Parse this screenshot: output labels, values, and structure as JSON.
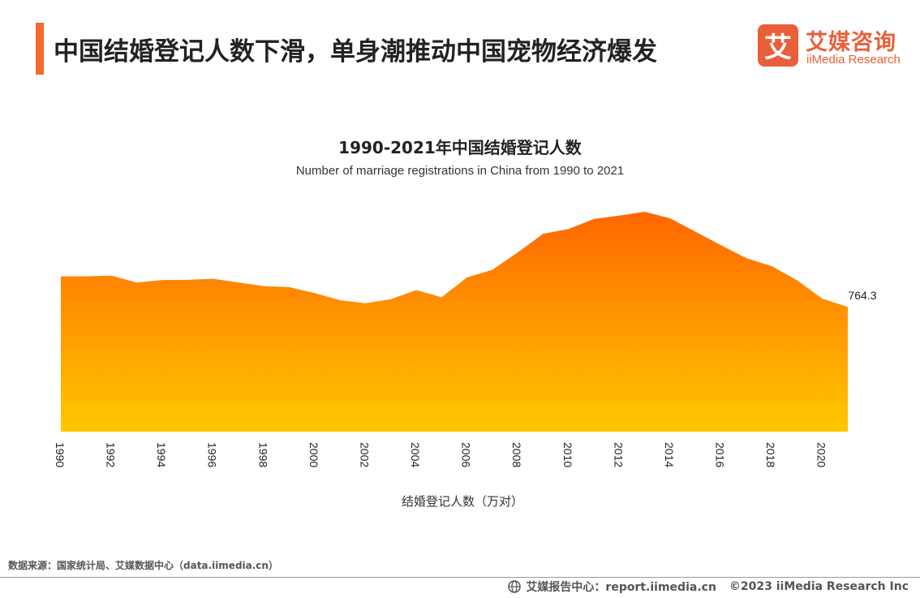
{
  "header": {
    "title": "中国结婚登记人数下滑，单身潮推动中国宠物经济爆发",
    "logo_cn": "艾媒咨询",
    "logo_en": "iiMedia Research",
    "logo_mark": "艾"
  },
  "colors": {
    "accent": "#f26a2e",
    "brand": "#e95f39",
    "area_top": "#ff6600",
    "area_bottom": "#ffc800"
  },
  "chart_data": {
    "type": "area",
    "title": "1990-2021年中国结婚登记人数",
    "subtitle": "Number of marriage registrations in China from 1990 to 2021",
    "xlabel": "结婚登记人数（万对）",
    "ylabel": "",
    "x": [
      1990,
      1991,
      1992,
      1993,
      1994,
      1995,
      1996,
      1997,
      1998,
      1999,
      2000,
      2001,
      2002,
      2003,
      2004,
      2005,
      2006,
      2007,
      2008,
      2009,
      2010,
      2011,
      2012,
      2013,
      2014,
      2015,
      2016,
      2017,
      2018,
      2019,
      2020,
      2021
    ],
    "x_tick_labels": [
      "1990",
      "1992",
      "1994",
      "1996",
      "1998",
      "2000",
      "2002",
      "2004",
      "2006",
      "2008",
      "2010",
      "2012",
      "2014",
      "2016",
      "2018",
      "2020"
    ],
    "values": [
      951.1,
      951.3,
      955.6,
      913.3,
      929.0,
      929.7,
      936.5,
      914.1,
      891.7,
      885.3,
      848.5,
      805.0,
      786.0,
      811.4,
      867.2,
      823.1,
      945.0,
      991.4,
      1098.3,
      1212.4,
      1241.0,
      1302.4,
      1323.6,
      1346.9,
      1306.7,
      1224.7,
      1142.8,
      1063.1,
      1013.9,
      927.3,
      814.3,
      764.3
    ],
    "ylim": [
      0,
      1650
    ],
    "annotations": [
      {
        "x": 2021,
        "label": "764.3"
      }
    ],
    "grid": false,
    "legend": "none"
  },
  "footer": {
    "source": "数据来源：国家统计局、艾媒数据中心（data.iimedia.cn）",
    "report_center": "艾媒报告中心：report.iimedia.cn",
    "copyright": "©2023  iiMedia Research Inc"
  }
}
